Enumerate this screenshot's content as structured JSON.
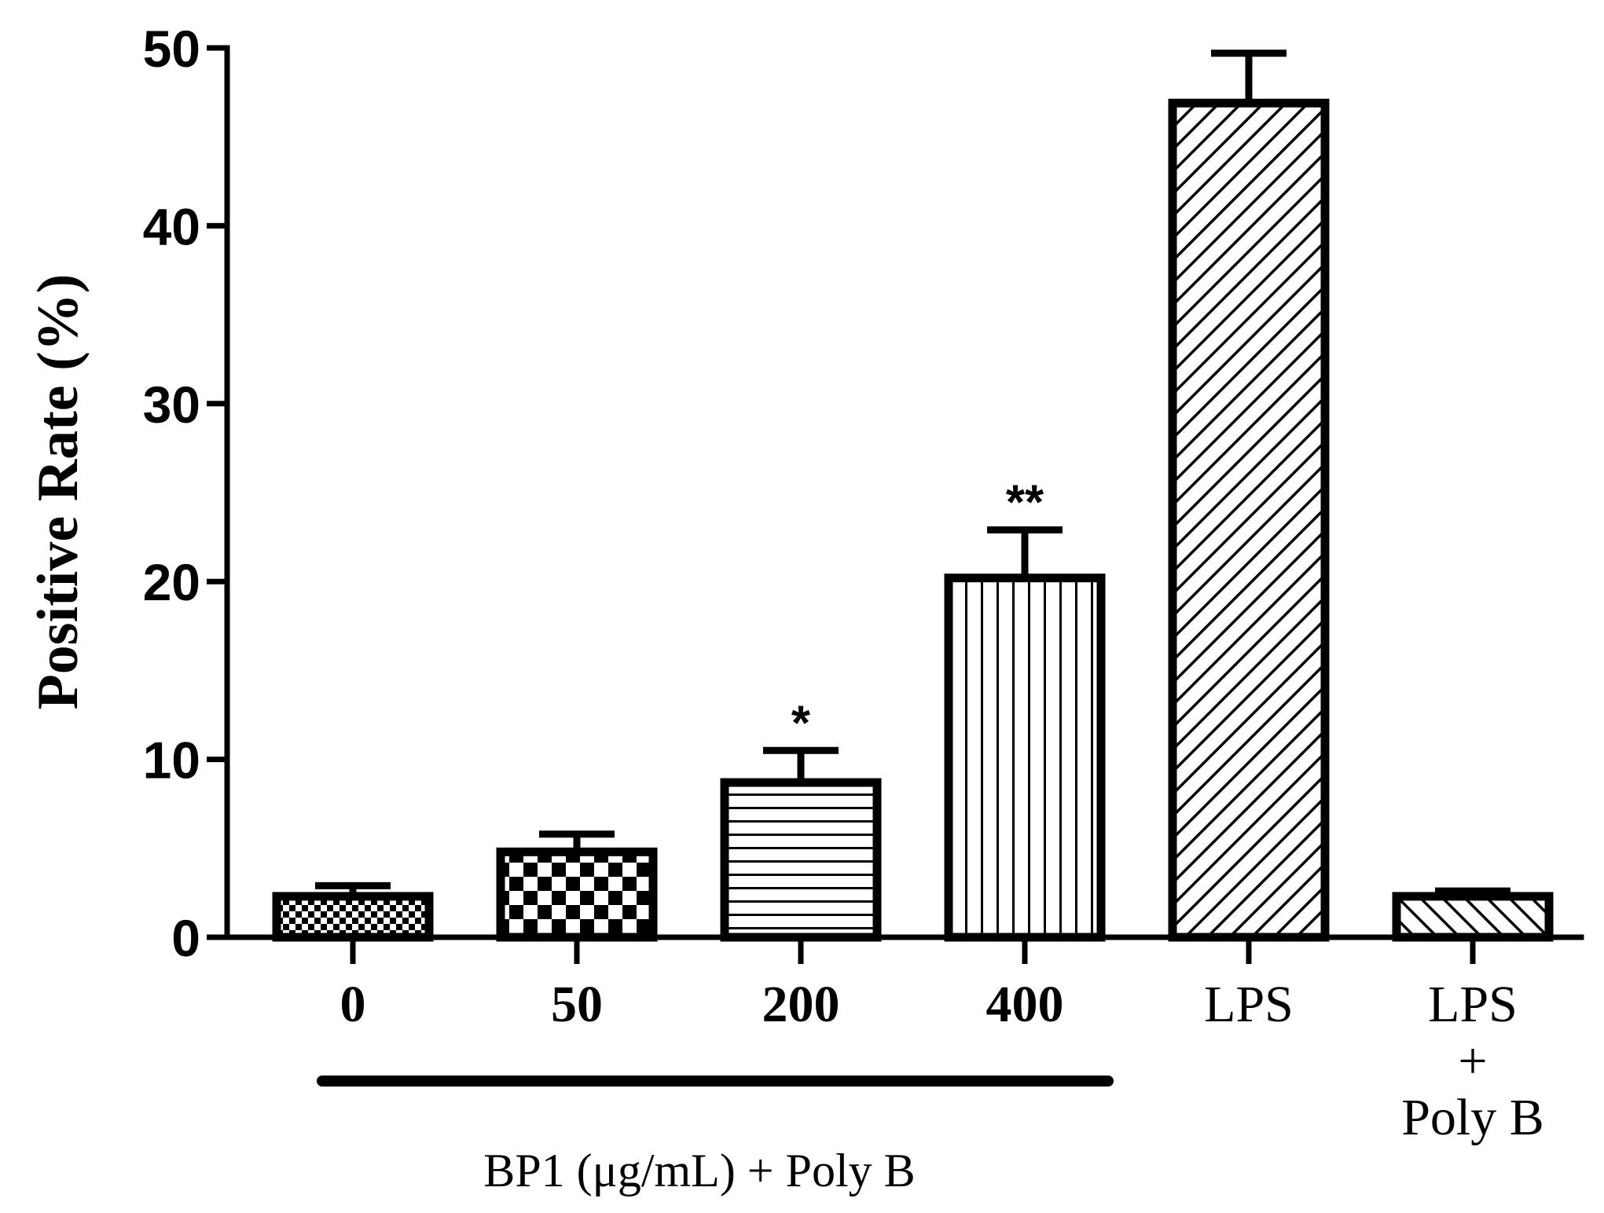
{
  "chart_data": {
    "type": "bar",
    "title": "",
    "xlabel": "",
    "ylabel": "Positive Rate (%)",
    "ylim": [
      0,
      50
    ],
    "yticks": [
      "0",
      "10",
      "20",
      "30",
      "40",
      "50"
    ],
    "categories": [
      "0",
      "50",
      "200",
      "400",
      "LPS",
      "LPS + Poly B"
    ],
    "category_label_lines": [
      [
        "0"
      ],
      [
        "50"
      ],
      [
        "200"
      ],
      [
        "400"
      ],
      [
        "LPS"
      ],
      [
        "LPS",
        "+",
        "Poly B"
      ]
    ],
    "bold_categories": [
      true,
      true,
      true,
      true,
      false,
      false
    ],
    "values": [
      2.3,
      4.8,
      8.7,
      20.2,
      46.9,
      2.3
    ],
    "errors": [
      0.6,
      1.0,
      1.8,
      2.7,
      2.8,
      0.3
    ],
    "patterns": [
      "checker-small",
      "checker-large",
      "horizontal",
      "vertical",
      "diag-up",
      "diag-down"
    ],
    "significance": [
      "",
      "",
      "*",
      "**",
      "",
      ""
    ],
    "group_label": "BP1 (μg/mL) + Poly B",
    "grid": false
  }
}
